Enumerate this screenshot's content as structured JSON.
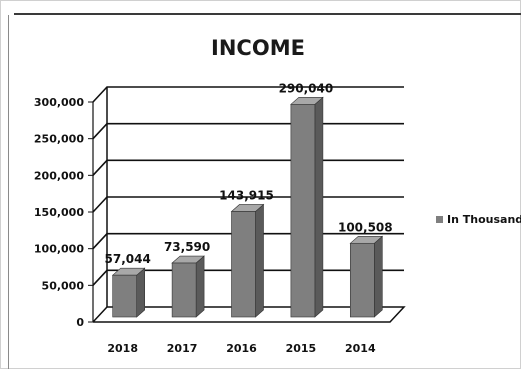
{
  "chart_data": {
    "type": "bar",
    "title": "INCOME",
    "categories": [
      "2018",
      "2017",
      "2016",
      "2015",
      "2014"
    ],
    "series": [
      {
        "name": "In Thousand",
        "values": [
          57044,
          73590,
          143915,
          290040,
          100508
        ],
        "labels": [
          "57,044",
          "73,590",
          "143,915",
          "290,040",
          "100,508"
        ]
      }
    ],
    "yticks": [
      "0",
      "50,000",
      "100,000",
      "150,000",
      "200,000",
      "250,000",
      "300,000"
    ],
    "ylim": [
      0,
      300000
    ],
    "grid": true,
    "legend": "right",
    "colors": {
      "bar_front": "#7f7f7f",
      "bar_side": "#5a5a5a",
      "bar_top": "#a8a8a8",
      "grid": "#111111"
    }
  }
}
